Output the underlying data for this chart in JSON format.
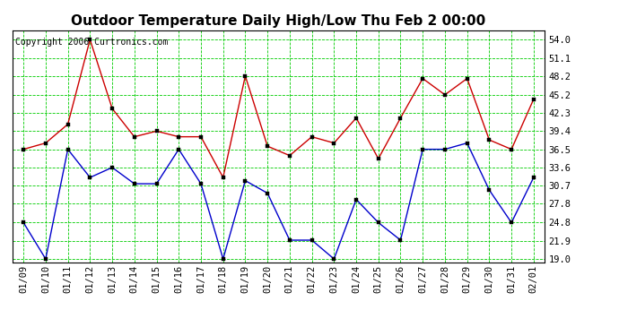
{
  "title": "Outdoor Temperature Daily High/Low Thu Feb 2 00:00",
  "copyright": "Copyright 2006 Curtronics.com",
  "dates": [
    "01/09",
    "01/10",
    "01/11",
    "01/12",
    "01/13",
    "01/14",
    "01/15",
    "01/16",
    "01/17",
    "01/18",
    "01/19",
    "01/20",
    "01/21",
    "01/22",
    "01/23",
    "01/24",
    "01/25",
    "01/26",
    "01/27",
    "01/28",
    "01/29",
    "01/30",
    "01/31",
    "02/01"
  ],
  "high": [
    36.5,
    37.5,
    40.5,
    54.0,
    43.0,
    38.5,
    39.4,
    38.5,
    38.5,
    32.0,
    48.2,
    37.0,
    35.5,
    38.5,
    37.5,
    41.5,
    35.0,
    41.5,
    47.8,
    45.2,
    47.8,
    38.0,
    36.5,
    44.5
  ],
  "low": [
    24.8,
    19.0,
    36.5,
    32.0,
    33.6,
    31.0,
    31.0,
    36.5,
    31.0,
    19.0,
    31.5,
    29.5,
    22.0,
    22.0,
    19.0,
    28.5,
    24.8,
    22.0,
    36.5,
    36.5,
    37.5,
    30.0,
    24.8,
    32.0
  ],
  "high_color": "#cc0000",
  "low_color": "#0000cc",
  "bg_color": "#ffffff",
  "plot_bg_color": "#ffffff",
  "grid_color": "#00cc00",
  "yticks": [
    19.0,
    21.9,
    24.8,
    27.8,
    30.7,
    33.6,
    36.5,
    39.4,
    42.3,
    45.2,
    48.2,
    51.1,
    54.0
  ],
  "ylim": [
    18.5,
    55.5
  ],
  "title_fontsize": 11,
  "tick_fontsize": 7.5,
  "copyright_fontsize": 7
}
